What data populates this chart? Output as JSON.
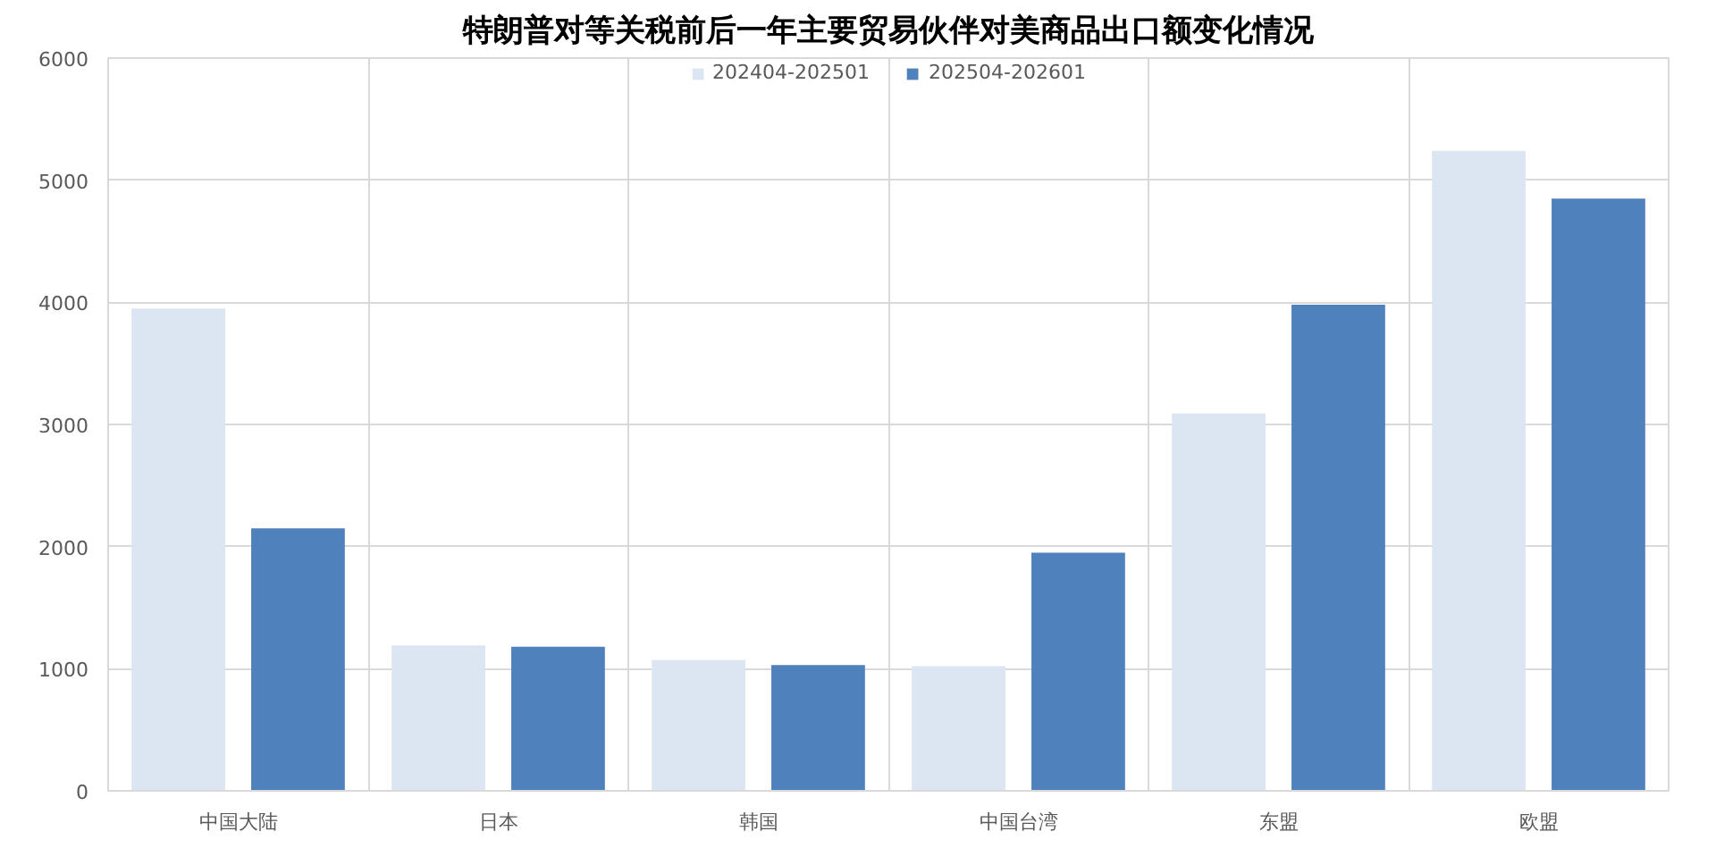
{
  "chart_data": {
    "type": "bar",
    "title": "特朗普对等关税前后一年主要贸易伙伴对美商品出口额变化情况",
    "categories": [
      "中国大陆",
      "日本",
      "韩国",
      "中国台湾",
      "东盟",
      "欧盟"
    ],
    "series": [
      {
        "name": "202404-202501",
        "color": "#dce6f2",
        "values": [
          3950,
          1190,
          1070,
          1020,
          3090,
          5240
        ]
      },
      {
        "name": "202504-202601",
        "color": "#4f81bd",
        "values": [
          2150,
          1180,
          1030,
          1950,
          3980,
          4850
        ]
      }
    ],
    "ylim": [
      0,
      6000
    ],
    "yticks": [
      0,
      1000,
      2000,
      3000,
      4000,
      5000,
      6000
    ],
    "grid": true,
    "legend": "top"
  }
}
